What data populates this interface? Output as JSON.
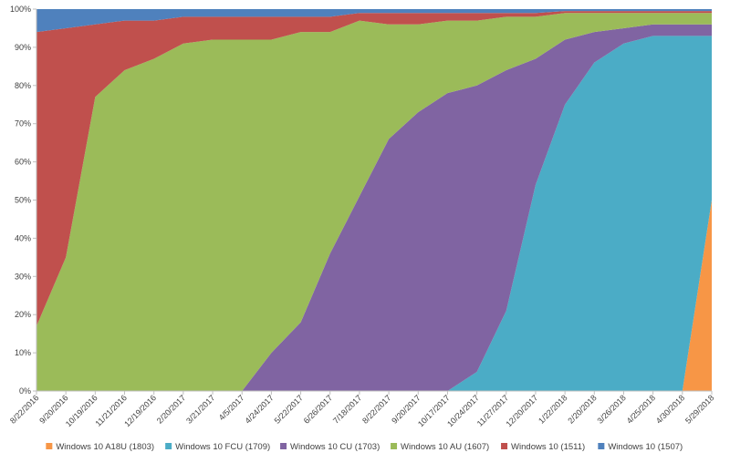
{
  "chart_data": {
    "type": "area",
    "stacked": true,
    "percent": true,
    "title": "",
    "xlabel": "",
    "ylabel": "",
    "ylim": [
      0,
      100
    ],
    "yticks": [
      "0%",
      "10%",
      "20%",
      "30%",
      "40%",
      "50%",
      "60%",
      "70%",
      "80%",
      "90%",
      "100%"
    ],
    "categories": [
      "8/22/2016",
      "9/20/2016",
      "10/19/2016",
      "11/21/2016",
      "12/19/2016",
      "2/20/2017",
      "3/21/2017",
      "4/5/2017",
      "4/24/2017",
      "5/22/2017",
      "6/26/2017",
      "7/18/2017",
      "8/22/2017",
      "9/20/2017",
      "10/17/2017",
      "10/24/2017",
      "11/27/2017",
      "12/20/2017",
      "1/22/2018",
      "2/20/2018",
      "3/26/2018",
      "4/25/2018",
      "4/30/2018",
      "5/29/2018"
    ],
    "grid": false,
    "legend_position": "bottom",
    "series": [
      {
        "name": "Windows 10 A18U (1803)",
        "color": "#F79646",
        "values": [
          0,
          0,
          0,
          0,
          0,
          0,
          0,
          0,
          0,
          0,
          0,
          0,
          0,
          0,
          0,
          0,
          0,
          0,
          0,
          0,
          0,
          0,
          0,
          50
        ]
      },
      {
        "name": "Windows 10 FCU (1709)",
        "color": "#4BACC6",
        "values": [
          0,
          0,
          0,
          0,
          0,
          0,
          0,
          0,
          0,
          0,
          0,
          0,
          0,
          0,
          0,
          5,
          21,
          54,
          75,
          86,
          91,
          93,
          93,
          43
        ]
      },
      {
        "name": "Windows 10 CU (1703)",
        "color": "#8064A2",
        "values": [
          0,
          0,
          0,
          0,
          0,
          0,
          0,
          0,
          10,
          18,
          36,
          51,
          66,
          73,
          78,
          75,
          63,
          33,
          17,
          8,
          4,
          3,
          3,
          3
        ]
      },
      {
        "name": "Windows 10 AU (1607)",
        "color": "#9BBB59",
        "values": [
          17,
          35,
          77,
          84,
          87,
          91,
          92,
          92,
          82,
          76,
          58,
          46,
          30,
          23,
          19,
          17,
          14,
          11,
          7,
          5,
          4,
          3,
          3,
          3
        ]
      },
      {
        "name": "Windows 10 (1511)",
        "color": "#C0504D",
        "values": [
          77,
          60,
          19,
          13,
          10,
          7,
          6,
          6,
          6,
          4,
          4,
          2,
          3,
          3,
          2,
          2,
          1,
          1,
          0.5,
          0.5,
          0.5,
          0.5,
          0.5,
          0.5
        ]
      },
      {
        "name": "Windows 10 (1507)",
        "color": "#4F81BD",
        "values": [
          6,
          5,
          4,
          3,
          3,
          2,
          2,
          2,
          2,
          2,
          2,
          1,
          1,
          1,
          1,
          1,
          1,
          1,
          0.5,
          0.5,
          0.5,
          0.5,
          0.5,
          0.5
        ]
      }
    ]
  }
}
